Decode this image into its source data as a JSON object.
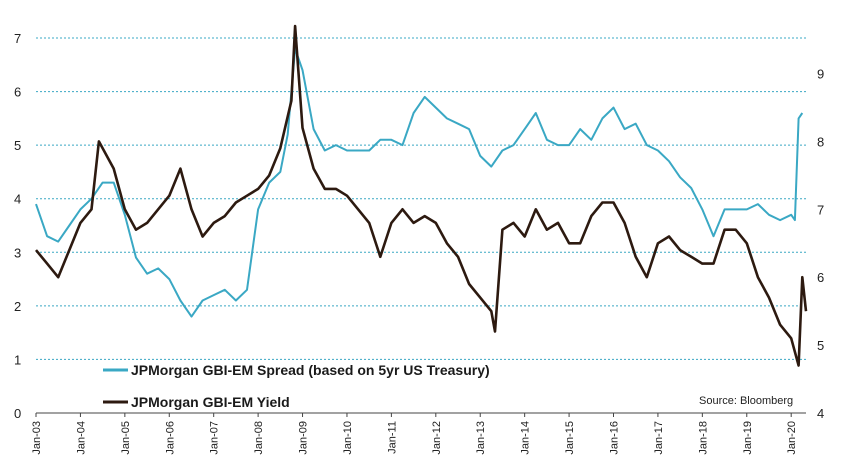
{
  "chart_data": {
    "type": "line",
    "title": "",
    "xlabel": "",
    "ylabel": "",
    "x_tick_labels": [
      "Jan-03",
      "Jan-04",
      "Jan-05",
      "Jan-06",
      "Jan-07",
      "Jan-08",
      "Jan-09",
      "Jan-10",
      "Jan-11",
      "Jan-12",
      "Jan-13",
      "Jan-14",
      "Jan-15",
      "Jan-16",
      "Jan-17",
      "Jan-18",
      "Jan-19",
      "Jan-20"
    ],
    "xlim": [
      "Jan-03",
      "May-20"
    ],
    "y_left": {
      "lim": [
        0,
        7
      ],
      "ticks": [
        "0",
        "1",
        "2",
        "3",
        "4",
        "5",
        "6",
        "7"
      ]
    },
    "y_right": {
      "lim": [
        4,
        9.7
      ],
      "ticks": [
        "4",
        "5",
        "6",
        "7",
        "8",
        "9"
      ]
    },
    "grid": "horizontal dotted at left-axis ticks",
    "legend_position": "bottom-left",
    "source": "Source:  Bloomberg",
    "series": [
      {
        "name": "JPMorgan GBI-EM Spread (based on 5yr US Treasury)",
        "axis": "left",
        "color": "#3aa8c4",
        "points": [
          [
            "Jan-03",
            3.9
          ],
          [
            "Apr-03",
            3.3
          ],
          [
            "Jul-03",
            3.2
          ],
          [
            "Oct-03",
            3.5
          ],
          [
            "Jan-04",
            3.8
          ],
          [
            "Apr-04",
            4.0
          ],
          [
            "Jul-04",
            4.3
          ],
          [
            "Oct-04",
            4.3
          ],
          [
            "Jan-05",
            3.7
          ],
          [
            "Apr-05",
            2.9
          ],
          [
            "Jul-05",
            2.6
          ],
          [
            "Oct-05",
            2.7
          ],
          [
            "Jan-06",
            2.5
          ],
          [
            "Apr-06",
            2.1
          ],
          [
            "Jul-06",
            1.8
          ],
          [
            "Oct-06",
            2.1
          ],
          [
            "Jan-07",
            2.2
          ],
          [
            "Apr-07",
            2.3
          ],
          [
            "Jul-07",
            2.1
          ],
          [
            "Oct-07",
            2.3
          ],
          [
            "Jan-08",
            3.8
          ],
          [
            "Apr-08",
            4.3
          ],
          [
            "Jul-08",
            4.5
          ],
          [
            "Sep-08",
            5.2
          ],
          [
            "Nov-08",
            6.8
          ],
          [
            "Jan-09",
            6.4
          ],
          [
            "Apr-09",
            5.3
          ],
          [
            "Jul-09",
            4.9
          ],
          [
            "Oct-09",
            5.0
          ],
          [
            "Jan-10",
            4.9
          ],
          [
            "Apr-10",
            4.9
          ],
          [
            "Jul-10",
            4.9
          ],
          [
            "Oct-10",
            5.1
          ],
          [
            "Jan-11",
            5.1
          ],
          [
            "Apr-11",
            5.0
          ],
          [
            "Jul-11",
            5.6
          ],
          [
            "Oct-11",
            5.9
          ],
          [
            "Jan-12",
            5.7
          ],
          [
            "Apr-12",
            5.5
          ],
          [
            "Jul-12",
            5.4
          ],
          [
            "Oct-12",
            5.3
          ],
          [
            "Jan-13",
            4.8
          ],
          [
            "Apr-13",
            4.6
          ],
          [
            "Jul-13",
            4.9
          ],
          [
            "Oct-13",
            5.0
          ],
          [
            "Jan-14",
            5.3
          ],
          [
            "Apr-14",
            5.6
          ],
          [
            "Jul-14",
            5.1
          ],
          [
            "Oct-14",
            5.0
          ],
          [
            "Jan-15",
            5.0
          ],
          [
            "Apr-15",
            5.3
          ],
          [
            "Jul-15",
            5.1
          ],
          [
            "Oct-15",
            5.5
          ],
          [
            "Jan-16",
            5.7
          ],
          [
            "Apr-16",
            5.3
          ],
          [
            "Jul-16",
            5.4
          ],
          [
            "Oct-16",
            5.0
          ],
          [
            "Jan-17",
            4.9
          ],
          [
            "Apr-17",
            4.7
          ],
          [
            "Jul-17",
            4.4
          ],
          [
            "Oct-17",
            4.2
          ],
          [
            "Jan-18",
            3.8
          ],
          [
            "Apr-18",
            3.3
          ],
          [
            "Jul-18",
            3.8
          ],
          [
            "Oct-18",
            3.8
          ],
          [
            "Jan-19",
            3.8
          ],
          [
            "Apr-19",
            3.9
          ],
          [
            "Jul-19",
            3.7
          ],
          [
            "Oct-19",
            3.6
          ],
          [
            "Jan-20",
            3.7
          ],
          [
            "Feb-20",
            3.6
          ],
          [
            "Mar-20",
            5.5
          ],
          [
            "Apr-20",
            5.6
          ]
        ]
      },
      {
        "name": "JPMorgan GBI-EM Yield",
        "axis": "right",
        "color": "#2d1a10",
        "points": [
          [
            "Jan-03",
            6.4
          ],
          [
            "Apr-03",
            6.2
          ],
          [
            "Jul-03",
            6.0
          ],
          [
            "Oct-03",
            6.4
          ],
          [
            "Jan-04",
            6.8
          ],
          [
            "Apr-04",
            7.0
          ],
          [
            "Jun-04",
            8.0
          ],
          [
            "Oct-04",
            7.6
          ],
          [
            "Jan-05",
            7.0
          ],
          [
            "Apr-05",
            6.7
          ],
          [
            "Jul-05",
            6.8
          ],
          [
            "Oct-05",
            7.0
          ],
          [
            "Jan-06",
            7.2
          ],
          [
            "Apr-06",
            7.6
          ],
          [
            "Jul-06",
            7.0
          ],
          [
            "Oct-06",
            6.6
          ],
          [
            "Jan-07",
            6.8
          ],
          [
            "Apr-07",
            6.9
          ],
          [
            "Jul-07",
            7.1
          ],
          [
            "Oct-07",
            7.2
          ],
          [
            "Jan-08",
            7.3
          ],
          [
            "Apr-08",
            7.5
          ],
          [
            "Jul-08",
            7.9
          ],
          [
            "Oct-08",
            8.6
          ],
          [
            "Nov-08",
            9.7
          ],
          [
            "Jan-09",
            8.2
          ],
          [
            "Apr-09",
            7.6
          ],
          [
            "Jul-09",
            7.3
          ],
          [
            "Oct-09",
            7.3
          ],
          [
            "Jan-10",
            7.2
          ],
          [
            "Apr-10",
            7.0
          ],
          [
            "Jul-10",
            6.8
          ],
          [
            "Oct-10",
            6.3
          ],
          [
            "Jan-11",
            6.8
          ],
          [
            "Apr-11",
            7.0
          ],
          [
            "Jul-11",
            6.8
          ],
          [
            "Oct-11",
            6.9
          ],
          [
            "Jan-12",
            6.8
          ],
          [
            "Apr-12",
            6.5
          ],
          [
            "Jul-12",
            6.3
          ],
          [
            "Oct-12",
            5.9
          ],
          [
            "Jan-13",
            5.7
          ],
          [
            "Apr-13",
            5.5
          ],
          [
            "May-13",
            5.2
          ],
          [
            "Jul-13",
            6.7
          ],
          [
            "Oct-13",
            6.8
          ],
          [
            "Jan-14",
            6.6
          ],
          [
            "Apr-14",
            7.0
          ],
          [
            "Jul-14",
            6.7
          ],
          [
            "Oct-14",
            6.8
          ],
          [
            "Jan-15",
            6.5
          ],
          [
            "Apr-15",
            6.5
          ],
          [
            "Jul-15",
            6.9
          ],
          [
            "Oct-15",
            7.1
          ],
          [
            "Jan-16",
            7.1
          ],
          [
            "Apr-16",
            6.8
          ],
          [
            "Jul-16",
            6.3
          ],
          [
            "Oct-16",
            6.0
          ],
          [
            "Jan-17",
            6.5
          ],
          [
            "Apr-17",
            6.6
          ],
          [
            "Jul-17",
            6.4
          ],
          [
            "Oct-17",
            6.3
          ],
          [
            "Jan-18",
            6.2
          ],
          [
            "Apr-18",
            6.2
          ],
          [
            "Jul-18",
            6.7
          ],
          [
            "Oct-18",
            6.7
          ],
          [
            "Jan-19",
            6.5
          ],
          [
            "Apr-19",
            6.0
          ],
          [
            "Jul-19",
            5.7
          ],
          [
            "Oct-19",
            5.3
          ],
          [
            "Jan-20",
            5.1
          ],
          [
            "Mar-20",
            4.7
          ],
          [
            "Apr-20",
            6.0
          ],
          [
            "May-20",
            5.5
          ]
        ]
      }
    ]
  }
}
